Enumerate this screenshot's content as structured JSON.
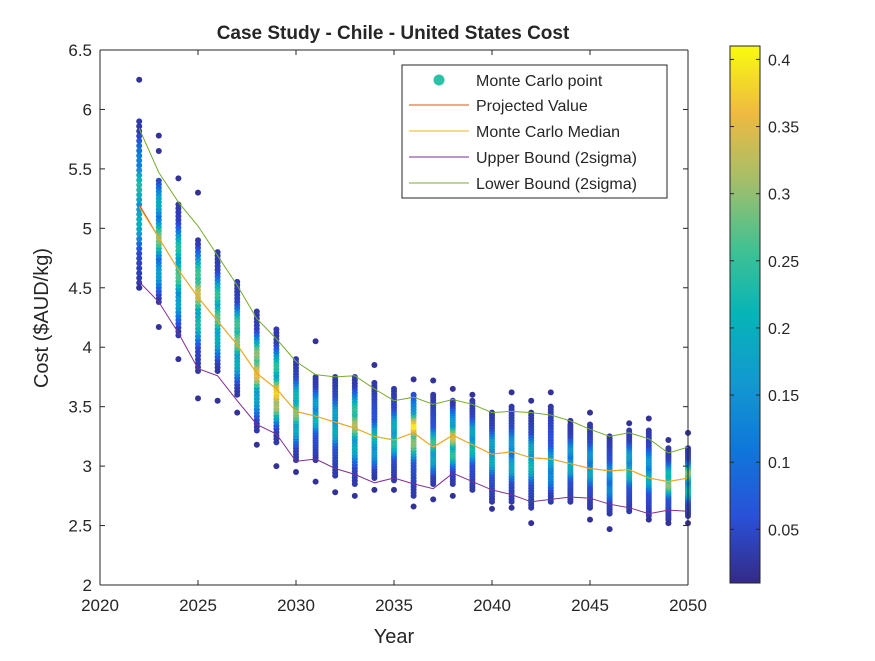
{
  "chart_data": {
    "type": "scatter",
    "title": "Case Study - Chile - United States Cost",
    "xlabel": "Year",
    "ylabel": "Cost ($AUD/kg)",
    "xlim": [
      2020,
      2050
    ],
    "ylim": [
      2,
      6.5
    ],
    "x_ticks": [
      "2020",
      "2025",
      "2030",
      "2035",
      "2040",
      "2045",
      "2050"
    ],
    "y_ticks": [
      "2",
      "2.5",
      "3",
      "3.5",
      "4",
      "4.5",
      "5",
      "5.5",
      "6",
      "6.5"
    ],
    "grid": false,
    "legend_position": "top-right",
    "colorbar": {
      "colormap": "parula",
      "range": [
        0.01,
        0.41
      ],
      "ticks": [
        "0.05",
        "0.1",
        "0.15",
        "0.2",
        "0.25",
        "0.3",
        "0.35",
        "0.4"
      ]
    },
    "series": [
      {
        "name": "Monte Carlo point",
        "kind": "scatter",
        "color": "#2bc2a8",
        "columns": [
          {
            "x": 2022,
            "min": 4.5,
            "max": 5.9,
            "outliers": [
              6.25,
              4.5
            ],
            "density": [
              [
                5.35,
                0.23
              ],
              [
                5.05,
                0.2
              ],
              [
                5.6,
                0.15
              ]
            ]
          },
          {
            "x": 2023,
            "min": 4.38,
            "max": 5.4,
            "outliers": [
              5.78,
              5.65,
              4.17
            ],
            "density": [
              [
                4.92,
                0.3
              ],
              [
                5.25,
                0.26
              ],
              [
                4.6,
                0.2
              ]
            ]
          },
          {
            "x": 2024,
            "min": 4.1,
            "max": 5.2,
            "outliers": [
              5.42,
              3.9
            ],
            "density": [
              [
                4.6,
                0.27
              ],
              [
                4.85,
                0.24
              ],
              [
                4.35,
                0.2
              ]
            ]
          },
          {
            "x": 2025,
            "min": 3.8,
            "max": 4.9,
            "outliers": [
              5.3,
              3.57
            ],
            "density": [
              [
                4.45,
                0.34
              ],
              [
                4.65,
                0.3
              ],
              [
                4.2,
                0.23
              ]
            ]
          },
          {
            "x": 2026,
            "min": 3.8,
            "max": 4.8,
            "outliers": [
              3.55
            ],
            "density": [
              [
                4.25,
                0.28
              ],
              [
                4.45,
                0.25
              ],
              [
                4.05,
                0.22
              ]
            ]
          },
          {
            "x": 2027,
            "min": 3.6,
            "max": 4.55,
            "outliers": [
              3.45
            ],
            "density": [
              [
                4.05,
                0.3
              ],
              [
                4.2,
                0.26
              ],
              [
                3.85,
                0.22
              ]
            ]
          },
          {
            "x": 2028,
            "min": 3.3,
            "max": 4.3,
            "outliers": [
              3.18
            ],
            "density": [
              [
                3.78,
                0.36
              ],
              [
                3.95,
                0.3
              ],
              [
                3.55,
                0.2
              ]
            ]
          },
          {
            "x": 2029,
            "min": 3.2,
            "max": 4.15,
            "outliers": [
              3.0
            ],
            "density": [
              [
                3.62,
                0.38
              ],
              [
                3.5,
                0.32
              ],
              [
                3.85,
                0.25
              ]
            ]
          },
          {
            "x": 2030,
            "min": 3.05,
            "max": 3.9,
            "outliers": [
              2.95
            ],
            "density": [
              [
                3.45,
                0.3
              ],
              [
                3.6,
                0.22
              ],
              [
                3.3,
                0.2
              ]
            ]
          },
          {
            "x": 2031,
            "min": 3.05,
            "max": 3.75,
            "outliers": [
              4.05,
              2.87
            ],
            "density": [
              [
                3.4,
                0.22
              ],
              [
                3.55,
                0.18
              ]
            ]
          },
          {
            "x": 2032,
            "min": 2.92,
            "max": 3.75,
            "outliers": [
              2.78
            ],
            "density": [
              [
                3.3,
                0.2
              ],
              [
                3.45,
                0.18
              ]
            ]
          },
          {
            "x": 2033,
            "min": 2.85,
            "max": 3.75,
            "outliers": [
              2.75
            ],
            "density": [
              [
                3.35,
                0.32
              ],
              [
                3.5,
                0.26
              ],
              [
                3.15,
                0.2
              ]
            ]
          },
          {
            "x": 2034,
            "min": 2.9,
            "max": 3.7,
            "outliers": [
              3.85,
              2.8
            ],
            "density": [
              [
                3.25,
                0.22
              ],
              [
                3.1,
                0.18
              ]
            ]
          },
          {
            "x": 2035,
            "min": 2.88,
            "max": 3.65,
            "outliers": [
              2.8
            ],
            "density": [
              [
                3.2,
                0.24
              ],
              [
                3.35,
                0.2
              ]
            ]
          },
          {
            "x": 2036,
            "min": 2.75,
            "max": 3.6,
            "outliers": [
              3.73,
              2.66
            ],
            "density": [
              [
                3.35,
                0.41
              ],
              [
                3.2,
                0.3
              ],
              [
                3.5,
                0.22
              ]
            ]
          },
          {
            "x": 2037,
            "min": 2.85,
            "max": 3.6,
            "outliers": [
              3.72,
              2.72
            ],
            "density": [
              [
                3.2,
                0.26
              ],
              [
                3.05,
                0.2
              ]
            ]
          },
          {
            "x": 2038,
            "min": 2.85,
            "max": 3.55,
            "outliers": [
              3.65,
              2.75
            ],
            "density": [
              [
                3.25,
                0.35
              ],
              [
                3.1,
                0.25
              ],
              [
                3.4,
                0.2
              ]
            ]
          },
          {
            "x": 2039,
            "min": 2.8,
            "max": 3.55,
            "outliers": [
              3.6
            ],
            "density": [
              [
                3.15,
                0.22
              ],
              [
                3.3,
                0.18
              ]
            ]
          },
          {
            "x": 2040,
            "min": 2.7,
            "max": 3.45,
            "outliers": [
              2.64
            ],
            "density": [
              [
                3.05,
                0.2
              ],
              [
                3.2,
                0.18
              ]
            ]
          },
          {
            "x": 2041,
            "min": 2.7,
            "max": 3.5,
            "outliers": [
              3.62,
              2.65
            ],
            "density": [
              [
                3.0,
                0.2
              ],
              [
                3.2,
                0.16
              ]
            ]
          },
          {
            "x": 2042,
            "min": 2.65,
            "max": 3.45,
            "outliers": [
              3.55,
              2.52
            ],
            "density": [
              [
                3.0,
                0.22
              ],
              [
                3.15,
                0.18
              ]
            ]
          },
          {
            "x": 2043,
            "min": 2.7,
            "max": 3.5,
            "outliers": [
              3.62
            ],
            "density": [
              [
                3.05,
                0.18
              ],
              [
                2.9,
                0.15
              ]
            ]
          },
          {
            "x": 2044,
            "min": 2.7,
            "max": 3.35,
            "outliers": [
              3.38
            ],
            "density": [
              [
                3.0,
                0.2
              ],
              [
                3.15,
                0.16
              ]
            ]
          },
          {
            "x": 2045,
            "min": 2.65,
            "max": 3.35,
            "outliers": [
              3.45,
              2.55
            ],
            "density": [
              [
                2.95,
                0.18
              ],
              [
                3.1,
                0.15
              ]
            ]
          },
          {
            "x": 2046,
            "min": 2.6,
            "max": 3.25,
            "outliers": [
              2.47
            ],
            "density": [
              [
                2.95,
                0.16
              ],
              [
                2.8,
                0.14
              ]
            ]
          },
          {
            "x": 2047,
            "min": 2.62,
            "max": 3.3,
            "outliers": [
              3.36
            ],
            "density": [
              [
                2.95,
                0.22
              ],
              [
                3.1,
                0.18
              ]
            ]
          },
          {
            "x": 2048,
            "min": 2.58,
            "max": 3.3,
            "outliers": [
              3.4,
              2.55
            ],
            "density": [
              [
                2.9,
                0.2
              ],
              [
                3.05,
                0.16
              ]
            ]
          },
          {
            "x": 2049,
            "min": 2.55,
            "max": 3.15,
            "outliers": [
              3.22,
              2.52
            ],
            "density": [
              [
                2.85,
                0.3
              ],
              [
                2.95,
                0.22
              ]
            ]
          },
          {
            "x": 2050,
            "min": 2.58,
            "max": 3.15,
            "outliers": [
              3.28,
              2.52
            ],
            "density": [
              [
                2.95,
                0.3
              ],
              [
                2.8,
                0.22
              ]
            ]
          }
        ]
      },
      {
        "name": "Projected Value",
        "kind": "line",
        "color": "#d95319",
        "x": [
          2022,
          2023,
          2024,
          2025,
          2026,
          2027,
          2028,
          2029,
          2030,
          2031,
          2032,
          2033,
          2034,
          2035,
          2036,
          2037,
          2038,
          2039,
          2040,
          2041,
          2042,
          2043,
          2044,
          2045,
          2046,
          2047,
          2048,
          2049,
          2050
        ],
        "values": [
          5.2,
          4.92,
          4.65,
          4.42,
          4.22,
          4.02,
          3.78,
          3.65,
          3.46,
          3.42,
          3.37,
          3.32,
          3.25,
          3.22,
          3.28,
          3.16,
          3.26,
          3.18,
          3.1,
          3.12,
          3.07,
          3.06,
          3.02,
          2.98,
          2.96,
          2.97,
          2.9,
          2.87,
          2.9
        ]
      },
      {
        "name": "Monte Carlo Median",
        "kind": "line",
        "color": "#edb120",
        "x": [
          2022,
          2023,
          2024,
          2025,
          2026,
          2027,
          2028,
          2029,
          2030,
          2031,
          2032,
          2033,
          2034,
          2035,
          2036,
          2037,
          2038,
          2039,
          2040,
          2041,
          2042,
          2043,
          2044,
          2045,
          2046,
          2047,
          2048,
          2049,
          2050
        ],
        "values": [
          5.18,
          4.92,
          4.65,
          4.42,
          4.22,
          4.02,
          3.78,
          3.65,
          3.46,
          3.42,
          3.37,
          3.32,
          3.25,
          3.22,
          3.28,
          3.16,
          3.26,
          3.18,
          3.1,
          3.12,
          3.07,
          3.06,
          3.02,
          2.98,
          2.96,
          2.97,
          2.9,
          2.87,
          2.9
        ]
      },
      {
        "name": "Upper Bound (2sigma)",
        "kind": "line",
        "color": "#7e2f8e",
        "x": [
          2022,
          2023,
          2024,
          2025,
          2026,
          2027,
          2028,
          2029,
          2030,
          2031,
          2032,
          2033,
          2034,
          2035,
          2036,
          2037,
          2038,
          2039,
          2040,
          2041,
          2042,
          2043,
          2044,
          2045,
          2046,
          2047,
          2048,
          2049,
          2050
        ],
        "values": [
          4.55,
          4.38,
          4.12,
          3.82,
          3.76,
          3.55,
          3.35,
          3.27,
          3.04,
          3.06,
          2.98,
          2.93,
          2.86,
          2.9,
          2.85,
          2.81,
          2.94,
          2.87,
          2.8,
          2.76,
          2.7,
          2.72,
          2.74,
          2.73,
          2.68,
          2.65,
          2.6,
          2.63,
          2.62
        ]
      },
      {
        "name": "Lower Bound (2sigma)",
        "kind": "line",
        "color": "#77ac30",
        "x": [
          2022,
          2023,
          2024,
          2025,
          2026,
          2027,
          2028,
          2029,
          2030,
          2031,
          2032,
          2033,
          2034,
          2035,
          2036,
          2037,
          2038,
          2039,
          2040,
          2041,
          2042,
          2043,
          2044,
          2045,
          2046,
          2047,
          2048,
          2049,
          2050
        ],
        "values": [
          5.84,
          5.47,
          5.22,
          5.02,
          4.77,
          4.52,
          4.24,
          4.07,
          3.88,
          3.77,
          3.75,
          3.76,
          3.65,
          3.55,
          3.58,
          3.52,
          3.56,
          3.52,
          3.45,
          3.46,
          3.45,
          3.43,
          3.38,
          3.31,
          3.25,
          3.28,
          3.23,
          3.11,
          3.16
        ]
      }
    ]
  }
}
